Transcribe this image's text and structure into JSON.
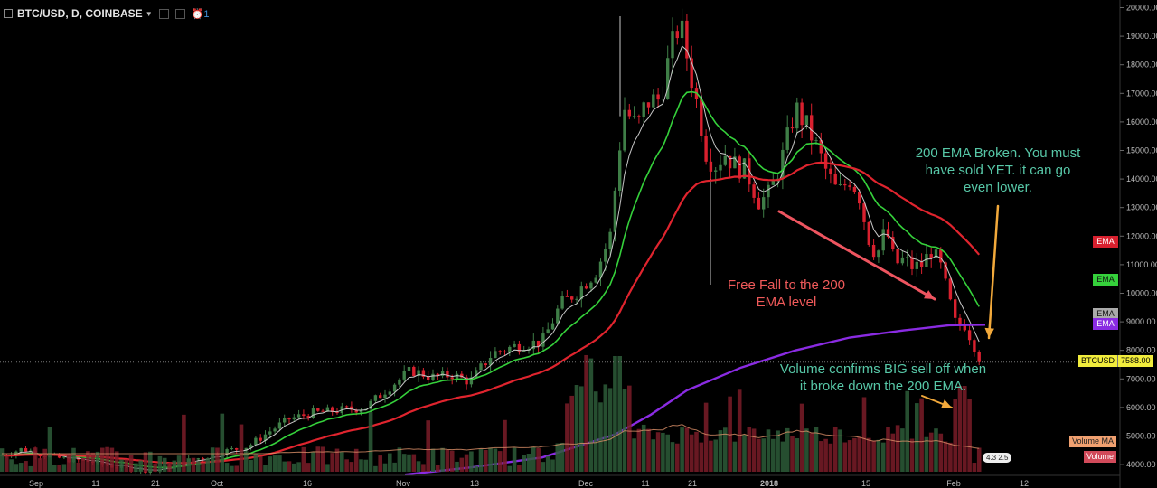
{
  "header": {
    "symbol": "BTC/USD, D, COINBASE",
    "alert_count": "1"
  },
  "annotations": {
    "free_fall": "Free Fall to the 200 EMA level",
    "ema_broken": "200 EMA Broken. You must have sold YET. it can go even lower.",
    "volume_confirms": "Volume confirms BIG sell off when it broke down the 200 EMA."
  },
  "indicator_tags": {
    "ema_red": "EMA",
    "ema_green": "EMA",
    "ema_gray": "EMA",
    "ema_purple": "EMA",
    "volume_ma": "Volume MA",
    "volume": "Volume"
  },
  "price_tag": {
    "symbol": "BTCUSD",
    "value": "7588.00"
  },
  "volume_badge": "4.3 2.5",
  "colors": {
    "up": "#3f7e47",
    "down": "#d8202e",
    "ema_short": "#c8c8c8",
    "ema_mid": "#35d13b",
    "ema_long": "#e0242e",
    "ema_200": "#8a2be2",
    "vol_up": "#2d5c38",
    "vol_down": "#7a1c28"
  },
  "chart_data": {
    "type": "candlestick",
    "title": "BTC/USD, D, COINBASE",
    "ylim": [
      3700,
      20200
    ],
    "y_ticks": [
      "4000.00",
      "5000.00",
      "6000.00",
      "7000.00",
      "8000.00",
      "9000.00",
      "10000.00",
      "11000.00",
      "12000.00",
      "13000.00",
      "14000.00",
      "15000.00",
      "16000.00",
      "17000.00",
      "18000.00",
      "19000.00",
      "20000.00"
    ],
    "x_ticks": [
      "Sep",
      "11",
      "21",
      "Oct",
      "16",
      "Nov",
      "13",
      "Dec",
      "11",
      "21",
      "2018",
      "15",
      "Feb",
      "12"
    ],
    "last_price": 7588.0,
    "grid": false
  }
}
